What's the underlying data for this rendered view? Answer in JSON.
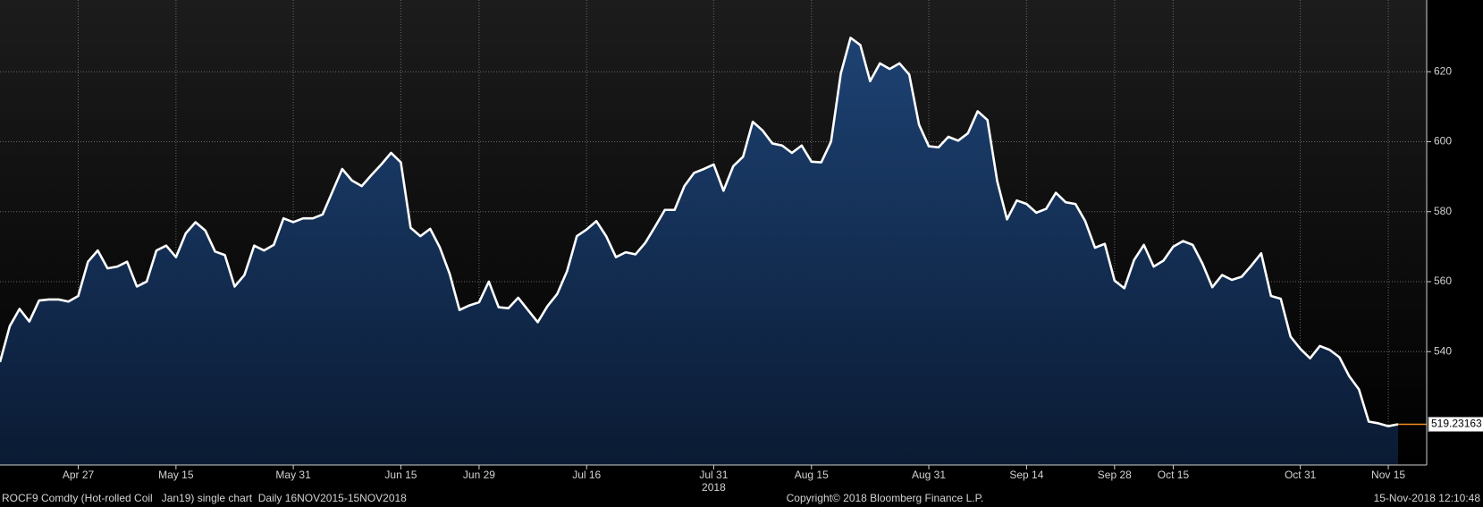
{
  "chart_data": {
    "type": "area",
    "color": "#ffffff",
    "fill_color": "#16365f",
    "last_value_color": "#f28c1e",
    "grid": true,
    "ylim": [
      507.6,
      640.5
    ],
    "yticks": [
      540,
      560,
      580,
      600,
      620
    ],
    "categories": [
      null,
      null,
      null,
      null,
      null,
      null,
      null,
      null,
      "Apr 27",
      null,
      null,
      null,
      null,
      null,
      null,
      null,
      null,
      null,
      "May 15",
      null,
      null,
      null,
      null,
      null,
      null,
      null,
      null,
      null,
      null,
      null,
      "May 31",
      null,
      null,
      null,
      null,
      null,
      null,
      null,
      null,
      null,
      null,
      "Jun 15",
      null,
      null,
      null,
      null,
      null,
      null,
      null,
      "Jun 29",
      null,
      null,
      null,
      null,
      null,
      null,
      null,
      null,
      null,
      null,
      "Jul 16",
      null,
      null,
      null,
      null,
      null,
      null,
      null,
      null,
      null,
      null,
      null,
      null,
      "Jul 31",
      null,
      null,
      null,
      null,
      null,
      null,
      null,
      null,
      null,
      "Aug 15",
      null,
      null,
      null,
      null,
      null,
      null,
      null,
      null,
      null,
      null,
      null,
      "Aug 31",
      null,
      null,
      null,
      null,
      null,
      null,
      null,
      null,
      null,
      "Sep 14",
      null,
      null,
      null,
      null,
      null,
      null,
      null,
      null,
      "Sep 28",
      null,
      null,
      null,
      null,
      null,
      "Oct 15",
      null,
      null,
      null,
      null,
      null,
      null,
      null,
      null,
      null,
      null,
      null,
      null,
      "Oct 31",
      null,
      null,
      null,
      null,
      null,
      null,
      null,
      null,
      "Nov 15",
      null
    ],
    "category_sublabels": [
      null,
      null,
      null,
      null,
      null,
      null,
      null,
      null,
      null,
      null,
      null,
      null,
      null,
      null,
      null,
      null,
      null,
      null,
      null,
      null,
      null,
      null,
      null,
      null,
      null,
      null,
      null,
      null,
      null,
      null,
      null,
      null,
      null,
      null,
      null,
      null,
      null,
      null,
      null,
      null,
      null,
      null,
      null,
      null,
      null,
      null,
      null,
      null,
      null,
      null,
      null,
      null,
      null,
      null,
      null,
      null,
      null,
      null,
      null,
      null,
      null,
      null,
      null,
      null,
      null,
      null,
      null,
      null,
      null,
      null,
      null,
      null,
      null,
      "2018",
      null,
      null,
      null,
      null,
      null,
      null,
      null,
      null,
      null,
      null,
      null,
      null,
      null,
      null,
      null,
      null,
      null,
      null,
      null,
      null,
      null,
      null,
      null,
      null,
      null,
      null,
      null,
      null,
      null,
      null,
      null,
      null,
      null,
      null,
      null,
      null,
      null,
      null,
      null,
      null,
      null,
      null,
      null,
      null,
      null,
      null,
      null,
      null,
      null,
      null,
      null,
      null,
      null,
      null,
      null,
      null,
      null,
      null,
      null,
      null,
      null,
      null,
      null,
      null,
      null,
      null,
      null,
      null,
      null,
      null
    ],
    "values": [
      537.0,
      547.3,
      552.2,
      548.6,
      554.6,
      554.9,
      554.9,
      554.3,
      555.9,
      565.7,
      568.9,
      563.8,
      564.3,
      565.7,
      558.6,
      560.0,
      568.9,
      570.3,
      567.0,
      573.8,
      577.0,
      574.6,
      568.6,
      567.6,
      558.6,
      561.9,
      570.3,
      568.9,
      570.5,
      578.1,
      577.0,
      578.1,
      578.1,
      579.2,
      585.7,
      592.2,
      588.9,
      587.3,
      590.5,
      593.5,
      596.8,
      594.1,
      575.4,
      573.0,
      575.1,
      569.7,
      562.2,
      551.9,
      553.2,
      554.1,
      560.0,
      552.7,
      552.4,
      555.4,
      551.9,
      548.4,
      553.0,
      556.5,
      563.0,
      573.0,
      574.9,
      577.3,
      573.0,
      567.0,
      568.4,
      567.8,
      571.1,
      575.7,
      580.5,
      580.5,
      587.3,
      591.1,
      592.2,
      593.5,
      586.0,
      593.0,
      595.7,
      605.7,
      603.2,
      599.5,
      598.9,
      596.8,
      598.9,
      594.3,
      594.1,
      600.0,
      619.5,
      629.7,
      627.6,
      617.3,
      622.4,
      620.8,
      622.4,
      619.2,
      604.9,
      598.7,
      598.4,
      601.4,
      600.3,
      602.4,
      608.7,
      606.2,
      588.7,
      577.8,
      583.2,
      582.2,
      579.7,
      580.8,
      585.4,
      582.7,
      582.2,
      577.3,
      569.7,
      570.8,
      560.3,
      558.1,
      566.2,
      570.5,
      564.3,
      566.0,
      570.0,
      571.6,
      570.5,
      565.1,
      558.4,
      561.9,
      560.5,
      561.4,
      564.6,
      568.1,
      555.9,
      555.1,
      544.3,
      540.8,
      538.1,
      541.6,
      540.5,
      538.4,
      533.0,
      529.2,
      520.0,
      519.5,
      518.7,
      519.23163
    ],
    "footer": {
      "left": "ROCF9 Comdty (Hot-rolled Coil   Jan19) single chart  Daily 16NOV2015-15NOV2018",
      "center": "Copyright© 2018 Bloomberg Finance L.P.",
      "right": "15-Nov-2018 12:10:48"
    }
  }
}
